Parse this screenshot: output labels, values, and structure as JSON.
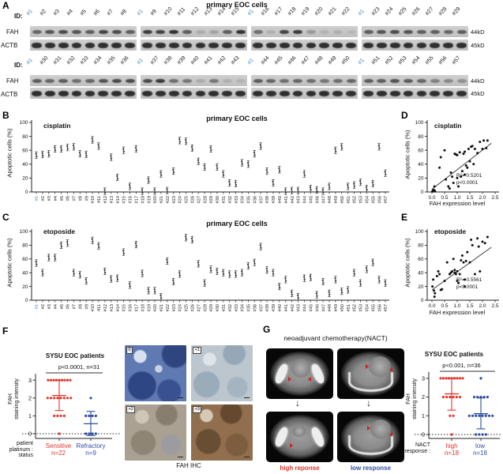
{
  "panel_a": {
    "letter": "A",
    "title": "primary EOC cells",
    "id_label": "ID:",
    "fah_label": "FAH",
    "actb_label": "ACTB",
    "kd_fah": "44kD",
    "kd_actb": "45kD",
    "highlight_id": "#1",
    "highlight_color": "#4f86c6",
    "rows": [
      {
        "groups": [
          {
            "ids": [
              "#1",
              "#2",
              "#3",
              "#4",
              "#5",
              "#6",
              "#7",
              "#8"
            ],
            "fah": [
              0.55,
              0.65,
              0.7,
              0.65,
              0.6,
              0.75,
              0.7,
              0.6
            ]
          },
          {
            "ids": [
              "#1",
              "#9",
              "#10",
              "#11",
              "#12",
              "#13",
              "#14",
              "#15"
            ],
            "fah": [
              0.8,
              0.75,
              0.85,
              0.6,
              0.15,
              0.2,
              0.6,
              0.85
            ]
          },
          {
            "ids": [
              "#1",
              "#16",
              "#17",
              "#18",
              "#19",
              "#20",
              "#21",
              "#22"
            ],
            "fah": [
              0.5,
              0.12,
              0.75,
              0.8,
              0.25,
              0.1,
              0.12,
              0.08
            ]
          },
          {
            "ids": [
              "#1",
              "#23",
              "#24",
              "#25",
              "#26",
              "#27",
              "#28",
              "#29"
            ],
            "fah": [
              0.6,
              0.65,
              0.7,
              0.65,
              0.6,
              0.6,
              0.55,
              0.6
            ]
          }
        ]
      },
      {
        "groups": [
          {
            "ids": [
              "#1",
              "#30",
              "#31",
              "#32",
              "#33",
              "#34",
              "#35",
              "#36"
            ],
            "fah": [
              0.6,
              0.55,
              0.6,
              0.5,
              0.55,
              0.65,
              0.7,
              0.7
            ]
          },
          {
            "ids": [
              "#1",
              "#37",
              "#38",
              "#39",
              "#40",
              "#41",
              "#42",
              "#43"
            ],
            "fah": [
              0.7,
              0.8,
              0.5,
              0.45,
              0.15,
              0.45,
              0.12,
              0.1
            ]
          },
          {
            "ids": [
              "#1",
              "#44",
              "#45",
              "#46",
              "#47",
              "#48",
              "#49",
              "#50"
            ],
            "fah": [
              0.6,
              0.55,
              0.5,
              0.55,
              0.5,
              0.45,
              0.5,
              0.55
            ]
          },
          {
            "ids": [
              "#1",
              "#51",
              "#52",
              "#53",
              "#54",
              "#55",
              "#56",
              "#57"
            ],
            "fah": [
              0.6,
              0.6,
              0.65,
              0.6,
              0.55,
              0.4,
              0.35,
              0.3
            ]
          }
        ]
      }
    ],
    "actb_intensity": 0.88
  },
  "panel_b": {
    "letter": "B"
  },
  "panel_c": {
    "letter": "C"
  },
  "panel_d": {
    "letter": "D"
  },
  "panel_e": {
    "letter": "E"
  },
  "panel_f": {
    "letter": "F",
    "title": "SYSU  EOC patients",
    "sig_text": "p<0.0001, n=31",
    "axis_caption_lines": [
      "patient",
      "platinum :",
      "status"
    ],
    "group_labels": [
      {
        "name": "Sensitive",
        "n": "n=22",
        "color": "#d9352c"
      },
      {
        "name": "Refractory",
        "n": "n=9",
        "color": "#3350a2"
      }
    ],
    "ihc": {
      "labels": [
        "0",
        "+1",
        "+2",
        "+3"
      ],
      "caption": "FAH IHC"
    }
  },
  "panel_g": {
    "letter": "G",
    "title": "neoadjuvant chemotherapy(NACT)",
    "captions": [
      {
        "text": "high reponse",
        "color": "#d9352c"
      },
      {
        "text": "low response",
        "color": "#3350a2"
      }
    ],
    "chart": {
      "title": "SYSU  EOC patients",
      "sig_text": "p<0.001, n=36",
      "axis_caption_lines": [
        "NACT",
        "response :"
      ],
      "group_labels": [
        {
          "name": "high",
          "n": "n=18",
          "color": "#d9352c"
        },
        {
          "name": "low",
          "n": "n=18",
          "color": "#3350a2"
        }
      ]
    }
  },
  "chart_data": [
    {
      "id": "chart-b",
      "type": "scatter-strip",
      "panel": "B",
      "title": "primary EOC cells",
      "treatment": "cisplatin",
      "ylabel": "Apoptotic cells (%)",
      "ylim": [
        0,
        100
      ],
      "yticks": [
        0,
        20,
        40,
        60,
        80,
        100
      ],
      "categories": [
        "#1",
        "#2",
        "#3",
        "#4",
        "#5",
        "#6",
        "#7",
        "#8",
        "#9",
        "#10",
        "#11",
        "#12",
        "#13",
        "#14",
        "#15",
        "#16",
        "#17",
        "#18",
        "#19",
        "#20",
        "#21",
        "#22",
        "#23",
        "#24",
        "#25",
        "#26",
        "#27",
        "#28",
        "#29",
        "#30",
        "#31",
        "#32",
        "#33",
        "#34",
        "#35",
        "#36",
        "#37",
        "#38",
        "#39",
        "#40",
        "#41",
        "#42",
        "#43",
        "#44",
        "#45",
        "#46",
        "#47",
        "#48",
        "#49",
        "#50",
        "#51",
        "#52",
        "#53",
        "#54",
        "#55",
        "#56",
        "#57"
      ],
      "values": [
        53,
        54,
        55,
        62,
        62,
        64,
        65,
        55,
        54,
        75,
        66,
        1,
        50,
        21,
        60,
        8,
        62,
        1,
        17,
        1,
        26,
        2,
        30,
        74,
        73,
        63,
        44,
        36,
        62,
        36,
        26,
        13,
        12,
        42,
        40,
        55,
        66,
        30,
        13,
        32,
        1,
        2,
        2,
        26,
        5,
        3,
        1,
        8,
        60,
        65,
        8,
        10,
        14,
        5,
        12,
        65,
        27
      ]
    },
    {
      "id": "chart-c",
      "type": "scatter-strip",
      "panel": "C",
      "title": "primary EOC cells",
      "treatment": "etoposide",
      "ylabel": "Apoptotic cells (%)",
      "ylim": [
        0,
        100
      ],
      "yticks": [
        0,
        20,
        40,
        60,
        80,
        100
      ],
      "categories": [
        "#1",
        "#2",
        "#3",
        "#4",
        "#5",
        "#6",
        "#7",
        "#8",
        "#9",
        "#10",
        "#11",
        "#12",
        "#13",
        "#14",
        "#15",
        "#16",
        "#17",
        "#18",
        "#19",
        "#20",
        "#21",
        "#22",
        "#23",
        "#24",
        "#25",
        "#26",
        "#27",
        "#28",
        "#29",
        "#30",
        "#31",
        "#32",
        "#33",
        "#34",
        "#35",
        "#36",
        "#37",
        "#38",
        "#39",
        "#40",
        "#41",
        "#42",
        "#43",
        "#44",
        "#45",
        "#46",
        "#47",
        "#48",
        "#49",
        "#50",
        "#51",
        "#52",
        "#53",
        "#54",
        "#55",
        "#56",
        "#57"
      ],
      "values": [
        54,
        40,
        62,
        62,
        80,
        83,
        40,
        37,
        28,
        87,
        79,
        42,
        31,
        32,
        70,
        22,
        81,
        39,
        14,
        14,
        5,
        57,
        27,
        38,
        91,
        88,
        53,
        25,
        45,
        42,
        40,
        38,
        38,
        40,
        50,
        55,
        78,
        44,
        40,
        20,
        30,
        10,
        5,
        32,
        33,
        8,
        27,
        10,
        30,
        13,
        15,
        40,
        25,
        45,
        55,
        30,
        25
      ]
    },
    {
      "id": "chart-d",
      "type": "scatter",
      "panel": "D",
      "treatment": "cisplatin",
      "xlabel": "FAH expression level",
      "ylabel": "Apoptotic cells (%)",
      "xlim": [
        0,
        2.5
      ],
      "xticks": [
        0,
        0.5,
        1,
        1.5,
        2,
        2.5
      ],
      "ylim": [
        0,
        100
      ],
      "yticks": [
        0,
        20,
        40,
        60,
        80,
        100
      ],
      "r2": "R²= 0.5201",
      "p": "p<0.0001",
      "trend": [
        0,
        4,
        2.35,
        70
      ],
      "points": [
        [
          0.02,
          1
        ],
        [
          0.04,
          2
        ],
        [
          0.05,
          1
        ],
        [
          0.07,
          3
        ],
        [
          0.08,
          1
        ],
        [
          0.1,
          2
        ],
        [
          0.1,
          8
        ],
        [
          0.12,
          1
        ],
        [
          0.3,
          35
        ],
        [
          0.35,
          50
        ],
        [
          0.5,
          60
        ],
        [
          0.55,
          18
        ],
        [
          0.65,
          8
        ],
        [
          0.7,
          5
        ],
        [
          0.75,
          28
        ],
        [
          0.8,
          22
        ],
        [
          0.85,
          13
        ],
        [
          0.9,
          55
        ],
        [
          0.95,
          54
        ],
        [
          1,
          53
        ],
        [
          1,
          20
        ],
        [
          1.05,
          8
        ],
        [
          1.1,
          57
        ],
        [
          1.15,
          22
        ],
        [
          1.2,
          30
        ],
        [
          1.25,
          55
        ],
        [
          1.3,
          58
        ],
        [
          1.3,
          25
        ],
        [
          1.35,
          38
        ],
        [
          1.4,
          35
        ],
        [
          1.45,
          62
        ],
        [
          1.5,
          44
        ],
        [
          1.55,
          65
        ],
        [
          1.6,
          66
        ],
        [
          1.65,
          40
        ],
        [
          1.7,
          62
        ],
        [
          1.8,
          56
        ],
        [
          1.9,
          72
        ],
        [
          2,
          62
        ],
        [
          2.05,
          74
        ],
        [
          2.15,
          63
        ],
        [
          2.2,
          74
        ]
      ]
    },
    {
      "id": "chart-e",
      "type": "scatter",
      "panel": "E",
      "treatment": "etoposide",
      "xlabel": "FAH expression level",
      "ylabel": "Apoptotic cells (%)",
      "xlim": [
        0,
        2.5
      ],
      "xticks": [
        0,
        0.5,
        1,
        1.5,
        2,
        2.5
      ],
      "ylim": [
        0,
        100
      ],
      "yticks": [
        0,
        20,
        40,
        60,
        80,
        100
      ],
      "r2": "R²= 0.5561",
      "p": "p<0.0001",
      "trend": [
        0,
        15,
        2.35,
        77
      ],
      "points": [
        [
          0.02,
          20
        ],
        [
          0.05,
          30
        ],
        [
          0.08,
          14
        ],
        [
          0.1,
          5
        ],
        [
          0.12,
          10
        ],
        [
          0.2,
          35
        ],
        [
          0.25,
          42
        ],
        [
          0.3,
          38
        ],
        [
          0.35,
          15
        ],
        [
          0.4,
          16
        ],
        [
          0.5,
          28
        ],
        [
          0.6,
          55
        ],
        [
          0.7,
          38
        ],
        [
          0.75,
          40
        ],
        [
          0.8,
          42
        ],
        [
          0.85,
          60
        ],
        [
          0.9,
          40
        ],
        [
          0.9,
          44
        ],
        [
          0.95,
          38
        ],
        [
          1,
          42
        ],
        [
          1,
          28
        ],
        [
          1.05,
          25
        ],
        [
          1.1,
          38
        ],
        [
          1.15,
          58
        ],
        [
          1.2,
          65
        ],
        [
          1.25,
          55
        ],
        [
          1.3,
          30
        ],
        [
          1.3,
          20
        ],
        [
          1.35,
          57
        ],
        [
          1.4,
          70
        ],
        [
          1.5,
          55
        ],
        [
          1.55,
          88
        ],
        [
          1.6,
          80
        ],
        [
          1.7,
          38
        ],
        [
          1.8,
          90
        ],
        [
          1.85,
          78
        ],
        [
          1.9,
          42
        ],
        [
          2,
          85
        ],
        [
          2.1,
          83
        ],
        [
          2.2,
          92
        ]
      ]
    },
    {
      "id": "chart-f",
      "type": "dot-groups",
      "panel": "F",
      "ylabel_lines": [
        "FAH",
        "staining intensity"
      ],
      "yticks": [
        0,
        1,
        2,
        3
      ],
      "groups": [
        {
          "name": "Sensitive",
          "color": "#e0372c",
          "values": [
            3,
            3,
            3,
            3,
            3,
            3,
            3,
            3,
            3,
            2,
            2,
            2,
            2,
            2,
            2,
            2,
            2,
            1,
            1,
            1,
            1,
            0
          ],
          "mean": 2.14,
          "lo": 1.3,
          "hi": 3.0
        },
        {
          "name": "Refractory",
          "color": "#2e4da0",
          "values": [
            2,
            1,
            1,
            1,
            1,
            0,
            0,
            0,
            0
          ],
          "mean": 0.56,
          "lo": -0.1,
          "hi": 1.25
        }
      ]
    },
    {
      "id": "chart-g",
      "type": "dot-groups",
      "panel": "G",
      "ylabel_lines": [
        "FAH",
        "staining intensity"
      ],
      "yticks": [
        0,
        1,
        2,
        3
      ],
      "groups": [
        {
          "name": "high",
          "color": "#e0372c",
          "values": [
            3,
            3,
            3,
            3,
            3,
            3,
            3,
            3,
            3,
            2,
            2,
            2,
            2,
            2,
            2,
            1,
            1,
            0
          ],
          "mean": 2.17,
          "lo": 1.3,
          "hi": 3.0
        },
        {
          "name": "low",
          "color": "#2e4da0",
          "values": [
            3,
            2,
            2,
            2,
            2,
            2,
            1,
            1,
            1,
            1,
            1,
            1,
            1,
            1,
            0,
            0,
            0,
            0
          ],
          "mean": 1.11,
          "lo": 0.3,
          "hi": 1.95
        }
      ]
    }
  ]
}
